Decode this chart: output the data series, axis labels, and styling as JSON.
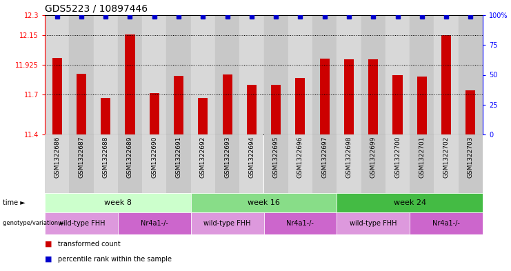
{
  "title": "GDS5223 / 10897446",
  "samples": [
    "GSM1322686",
    "GSM1322687",
    "GSM1322688",
    "GSM1322689",
    "GSM1322690",
    "GSM1322691",
    "GSM1322692",
    "GSM1322693",
    "GSM1322694",
    "GSM1322695",
    "GSM1322696",
    "GSM1322697",
    "GSM1322698",
    "GSM1322699",
    "GSM1322700",
    "GSM1322701",
    "GSM1322702",
    "GSM1322703"
  ],
  "bar_values": [
    11.98,
    11.86,
    11.675,
    12.155,
    11.71,
    11.84,
    11.675,
    11.855,
    11.775,
    11.775,
    11.825,
    11.97,
    11.965,
    11.965,
    11.845,
    11.835,
    12.15,
    11.735
  ],
  "bar_color": "#cc0000",
  "percentile_color": "#0000cc",
  "ymin": 11.4,
  "ymax": 12.3,
  "yticks": [
    11.4,
    11.7,
    11.925,
    12.15,
    12.3
  ],
  "ytick_labels": [
    "11.4",
    "11.7",
    "11.925",
    "12.15",
    "12.3"
  ],
  "yright_ticks": [
    0,
    25,
    50,
    75,
    100
  ],
  "yright_labels": [
    "0",
    "25",
    "50",
    "75",
    "100%"
  ],
  "hlines": [
    12.15,
    11.925,
    11.7
  ],
  "time_colors": [
    "#ccffcc",
    "#88dd88",
    "#44bb44"
  ],
  "time_labels": [
    "week 8",
    "week 16",
    "week 24"
  ],
  "time_boundaries": [
    0,
    6,
    12,
    18
  ],
  "geno_labels": [
    "wild-type FHH",
    "Nr4a1-/-",
    "wild-type FHH",
    "Nr4a1-/-",
    "wild-type FHH",
    "Nr4a1-/-"
  ],
  "geno_boundaries": [
    0,
    3,
    6,
    9,
    12,
    15,
    18
  ],
  "geno_color_even": "#dd99dd",
  "geno_color_odd": "#cc66cc",
  "xtick_bg_even": "#d8d8d8",
  "xtick_bg_odd": "#c8c8c8",
  "bar_width": 0.4
}
